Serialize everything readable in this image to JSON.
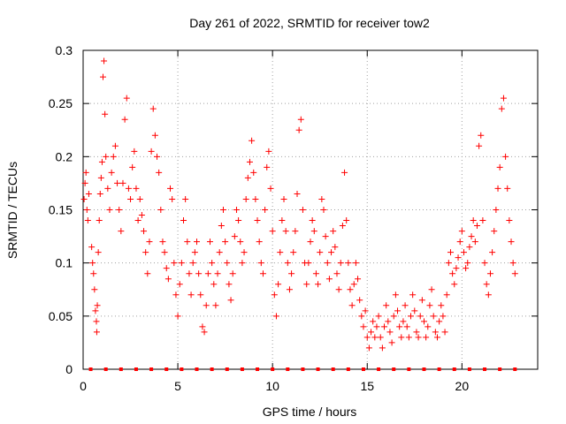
{
  "chart_data": {
    "type": "scatter",
    "title": "Day 261 of 2022, SRMTID for receiver tow2",
    "xlabel": "GPS time / hours",
    "ylabel": "SRMTID / TECUs",
    "xlim": [
      0,
      24
    ],
    "ylim": [
      0,
      0.3
    ],
    "xticks": [
      0,
      5,
      10,
      15,
      20
    ],
    "yticks": [
      0,
      0.05,
      0.1,
      0.15,
      0.2,
      0.25,
      0.3
    ],
    "grid": true,
    "marker": "plus",
    "color": "#ff0000",
    "series": [
      {
        "name": "SRMTID",
        "points": [
          [
            0.05,
            0.16
          ],
          [
            0.1,
            0.175
          ],
          [
            0.15,
            0.185
          ],
          [
            0.2,
            0.15
          ],
          [
            0.25,
            0.14
          ],
          [
            0.3,
            0.165
          ],
          [
            0.45,
            0.115
          ],
          [
            0.5,
            0.1
          ],
          [
            0.55,
            0.09
          ],
          [
            0.6,
            0.075
          ],
          [
            0.65,
            0.055
          ],
          [
            0.7,
            0.045
          ],
          [
            0.72,
            0.035
          ],
          [
            0.75,
            0.06
          ],
          [
            0.8,
            0.11
          ],
          [
            0.85,
            0.14
          ],
          [
            0.9,
            0.165
          ],
          [
            0.95,
            0.18
          ],
          [
            1.0,
            0.195
          ],
          [
            1.05,
            0.275
          ],
          [
            1.1,
            0.29
          ],
          [
            1.15,
            0.24
          ],
          [
            1.2,
            0.2
          ],
          [
            1.3,
            0.17
          ],
          [
            1.4,
            0.15
          ],
          [
            1.5,
            0.185
          ],
          [
            1.6,
            0.2
          ],
          [
            1.7,
            0.21
          ],
          [
            1.8,
            0.175
          ],
          [
            1.9,
            0.15
          ],
          [
            2.0,
            0.13
          ],
          [
            2.1,
            0.175
          ],
          [
            2.2,
            0.235
          ],
          [
            2.3,
            0.255
          ],
          [
            2.4,
            0.17
          ],
          [
            2.5,
            0.16
          ],
          [
            2.6,
            0.19
          ],
          [
            2.7,
            0.205
          ],
          [
            2.8,
            0.17
          ],
          [
            2.9,
            0.14
          ],
          [
            3.0,
            0.16
          ],
          [
            3.1,
            0.145
          ],
          [
            3.2,
            0.13
          ],
          [
            3.3,
            0.11
          ],
          [
            3.4,
            0.09
          ],
          [
            3.5,
            0.12
          ],
          [
            3.6,
            0.205
          ],
          [
            3.7,
            0.245
          ],
          [
            3.8,
            0.22
          ],
          [
            3.9,
            0.2
          ],
          [
            4.0,
            0.185
          ],
          [
            4.1,
            0.15
          ],
          [
            4.2,
            0.12
          ],
          [
            4.3,
            0.11
          ],
          [
            4.4,
            0.095
          ],
          [
            4.5,
            0.085
          ],
          [
            4.6,
            0.17
          ],
          [
            4.7,
            0.16
          ],
          [
            4.8,
            0.1
          ],
          [
            4.9,
            0.07
          ],
          [
            5.0,
            0.05
          ],
          [
            5.1,
            0.08
          ],
          [
            5.2,
            0.1
          ],
          [
            5.3,
            0.14
          ],
          [
            5.4,
            0.16
          ],
          [
            5.5,
            0.12
          ],
          [
            5.6,
            0.09
          ],
          [
            5.7,
            0.07
          ],
          [
            5.8,
            0.1
          ],
          [
            5.9,
            0.11
          ],
          [
            6.0,
            0.12
          ],
          [
            6.1,
            0.09
          ],
          [
            6.2,
            0.07
          ],
          [
            6.3,
            0.04
          ],
          [
            6.4,
            0.035
          ],
          [
            6.5,
            0.06
          ],
          [
            6.6,
            0.09
          ],
          [
            6.7,
            0.12
          ],
          [
            6.8,
            0.1
          ],
          [
            6.9,
            0.08
          ],
          [
            7.0,
            0.06
          ],
          [
            7.1,
            0.09
          ],
          [
            7.2,
            0.11
          ],
          [
            7.3,
            0.135
          ],
          [
            7.4,
            0.15
          ],
          [
            7.5,
            0.12
          ],
          [
            7.6,
            0.1
          ],
          [
            7.7,
            0.08
          ],
          [
            7.8,
            0.065
          ],
          [
            7.9,
            0.09
          ],
          [
            8.0,
            0.125
          ],
          [
            8.1,
            0.15
          ],
          [
            8.2,
            0.14
          ],
          [
            8.3,
            0.12
          ],
          [
            8.4,
            0.1
          ],
          [
            8.5,
            0.11
          ],
          [
            8.6,
            0.16
          ],
          [
            8.7,
            0.18
          ],
          [
            8.8,
            0.195
          ],
          [
            8.9,
            0.215
          ],
          [
            9.0,
            0.185
          ],
          [
            9.1,
            0.16
          ],
          [
            9.2,
            0.14
          ],
          [
            9.3,
            0.12
          ],
          [
            9.4,
            0.1
          ],
          [
            9.5,
            0.09
          ],
          [
            9.6,
            0.15
          ],
          [
            9.7,
            0.19
          ],
          [
            9.8,
            0.205
          ],
          [
            9.9,
            0.17
          ],
          [
            10.0,
            0.13
          ],
          [
            10.1,
            0.07
          ],
          [
            10.2,
            0.05
          ],
          [
            10.3,
            0.08
          ],
          [
            10.4,
            0.11
          ],
          [
            10.5,
            0.14
          ],
          [
            10.6,
            0.16
          ],
          [
            10.7,
            0.13
          ],
          [
            10.8,
            0.1
          ],
          [
            10.9,
            0.075
          ],
          [
            11.0,
            0.09
          ],
          [
            11.1,
            0.11
          ],
          [
            11.2,
            0.13
          ],
          [
            11.3,
            0.165
          ],
          [
            11.4,
            0.225
          ],
          [
            11.5,
            0.235
          ],
          [
            11.6,
            0.15
          ],
          [
            11.7,
            0.1
          ],
          [
            11.8,
            0.08
          ],
          [
            11.9,
            0.1
          ],
          [
            12.0,
            0.12
          ],
          [
            12.1,
            0.14
          ],
          [
            12.2,
            0.13
          ],
          [
            12.3,
            0.09
          ],
          [
            12.4,
            0.08
          ],
          [
            12.5,
            0.11
          ],
          [
            12.6,
            0.16
          ],
          [
            12.7,
            0.15
          ],
          [
            12.8,
            0.125
          ],
          [
            12.9,
            0.1
          ],
          [
            13.0,
            0.085
          ],
          [
            13.1,
            0.11
          ],
          [
            13.2,
            0.13
          ],
          [
            13.3,
            0.115
          ],
          [
            13.4,
            0.09
          ],
          [
            13.5,
            0.075
          ],
          [
            13.6,
            0.1
          ],
          [
            13.7,
            0.135
          ],
          [
            13.8,
            0.185
          ],
          [
            13.9,
            0.14
          ],
          [
            14.0,
            0.1
          ],
          [
            14.1,
            0.075
          ],
          [
            14.2,
            0.06
          ],
          [
            14.3,
            0.08
          ],
          [
            14.4,
            0.1
          ],
          [
            14.5,
            0.085
          ],
          [
            14.6,
            0.065
          ],
          [
            14.7,
            0.05
          ],
          [
            14.8,
            0.04
          ],
          [
            14.9,
            0.055
          ],
          [
            15.0,
            0.03
          ],
          [
            15.1,
            0.02
          ],
          [
            15.2,
            0.035
          ],
          [
            15.3,
            0.045
          ],
          [
            15.4,
            0.03
          ],
          [
            15.5,
            0.04
          ],
          [
            15.6,
            0.05
          ],
          [
            15.7,
            0.03
          ],
          [
            15.8,
            0.02
          ],
          [
            15.9,
            0.04
          ],
          [
            16.0,
            0.06
          ],
          [
            16.1,
            0.045
          ],
          [
            16.2,
            0.035
          ],
          [
            16.3,
            0.025
          ],
          [
            16.4,
            0.05
          ],
          [
            16.5,
            0.07
          ],
          [
            16.6,
            0.055
          ],
          [
            16.7,
            0.04
          ],
          [
            16.8,
            0.03
          ],
          [
            16.9,
            0.045
          ],
          [
            17.0,
            0.06
          ],
          [
            17.1,
            0.04
          ],
          [
            17.2,
            0.03
          ],
          [
            17.3,
            0.05
          ],
          [
            17.4,
            0.07
          ],
          [
            17.5,
            0.055
          ],
          [
            17.6,
            0.035
          ],
          [
            17.7,
            0.03
          ],
          [
            17.8,
            0.05
          ],
          [
            17.9,
            0.065
          ],
          [
            18.0,
            0.045
          ],
          [
            18.1,
            0.03
          ],
          [
            18.2,
            0.04
          ],
          [
            18.3,
            0.06
          ],
          [
            18.4,
            0.075
          ],
          [
            18.5,
            0.05
          ],
          [
            18.6,
            0.035
          ],
          [
            18.7,
            0.03
          ],
          [
            18.8,
            0.045
          ],
          [
            18.9,
            0.06
          ],
          [
            19.0,
            0.05
          ],
          [
            19.1,
            0.035
          ],
          [
            19.2,
            0.07
          ],
          [
            19.3,
            0.1
          ],
          [
            19.4,
            0.11
          ],
          [
            19.5,
            0.09
          ],
          [
            19.6,
            0.08
          ],
          [
            19.7,
            0.095
          ],
          [
            19.8,
            0.105
          ],
          [
            19.9,
            0.12
          ],
          [
            20.0,
            0.13
          ],
          [
            20.1,
            0.11
          ],
          [
            20.2,
            0.095
          ],
          [
            20.3,
            0.1
          ],
          [
            20.4,
            0.115
          ],
          [
            20.5,
            0.125
          ],
          [
            20.6,
            0.14
          ],
          [
            20.7,
            0.12
          ],
          [
            20.8,
            0.135
          ],
          [
            20.9,
            0.21
          ],
          [
            21.0,
            0.22
          ],
          [
            21.1,
            0.14
          ],
          [
            21.2,
            0.1
          ],
          [
            21.3,
            0.08
          ],
          [
            21.4,
            0.07
          ],
          [
            21.5,
            0.09
          ],
          [
            21.6,
            0.11
          ],
          [
            21.7,
            0.13
          ],
          [
            21.8,
            0.15
          ],
          [
            21.9,
            0.17
          ],
          [
            22.0,
            0.19
          ],
          [
            22.1,
            0.245
          ],
          [
            22.2,
            0.255
          ],
          [
            22.3,
            0.2
          ],
          [
            22.4,
            0.17
          ],
          [
            22.5,
            0.14
          ],
          [
            22.6,
            0.12
          ],
          [
            22.7,
            0.1
          ],
          [
            22.8,
            0.09
          ]
        ]
      }
    ],
    "baseline_markers": {
      "name": "zero markers",
      "marker": "square",
      "x": [
        0.4,
        1.2,
        2.0,
        2.8,
        3.6,
        4.4,
        5.2,
        6.0,
        6.8,
        7.6,
        8.4,
        9.2,
        10.0,
        10.8,
        11.6,
        12.4,
        13.2,
        14.0,
        14.8,
        15.6,
        16.4,
        17.2,
        18.0,
        18.8,
        19.6,
        20.4,
        21.2,
        22.0,
        22.8
      ],
      "y": 0
    }
  }
}
